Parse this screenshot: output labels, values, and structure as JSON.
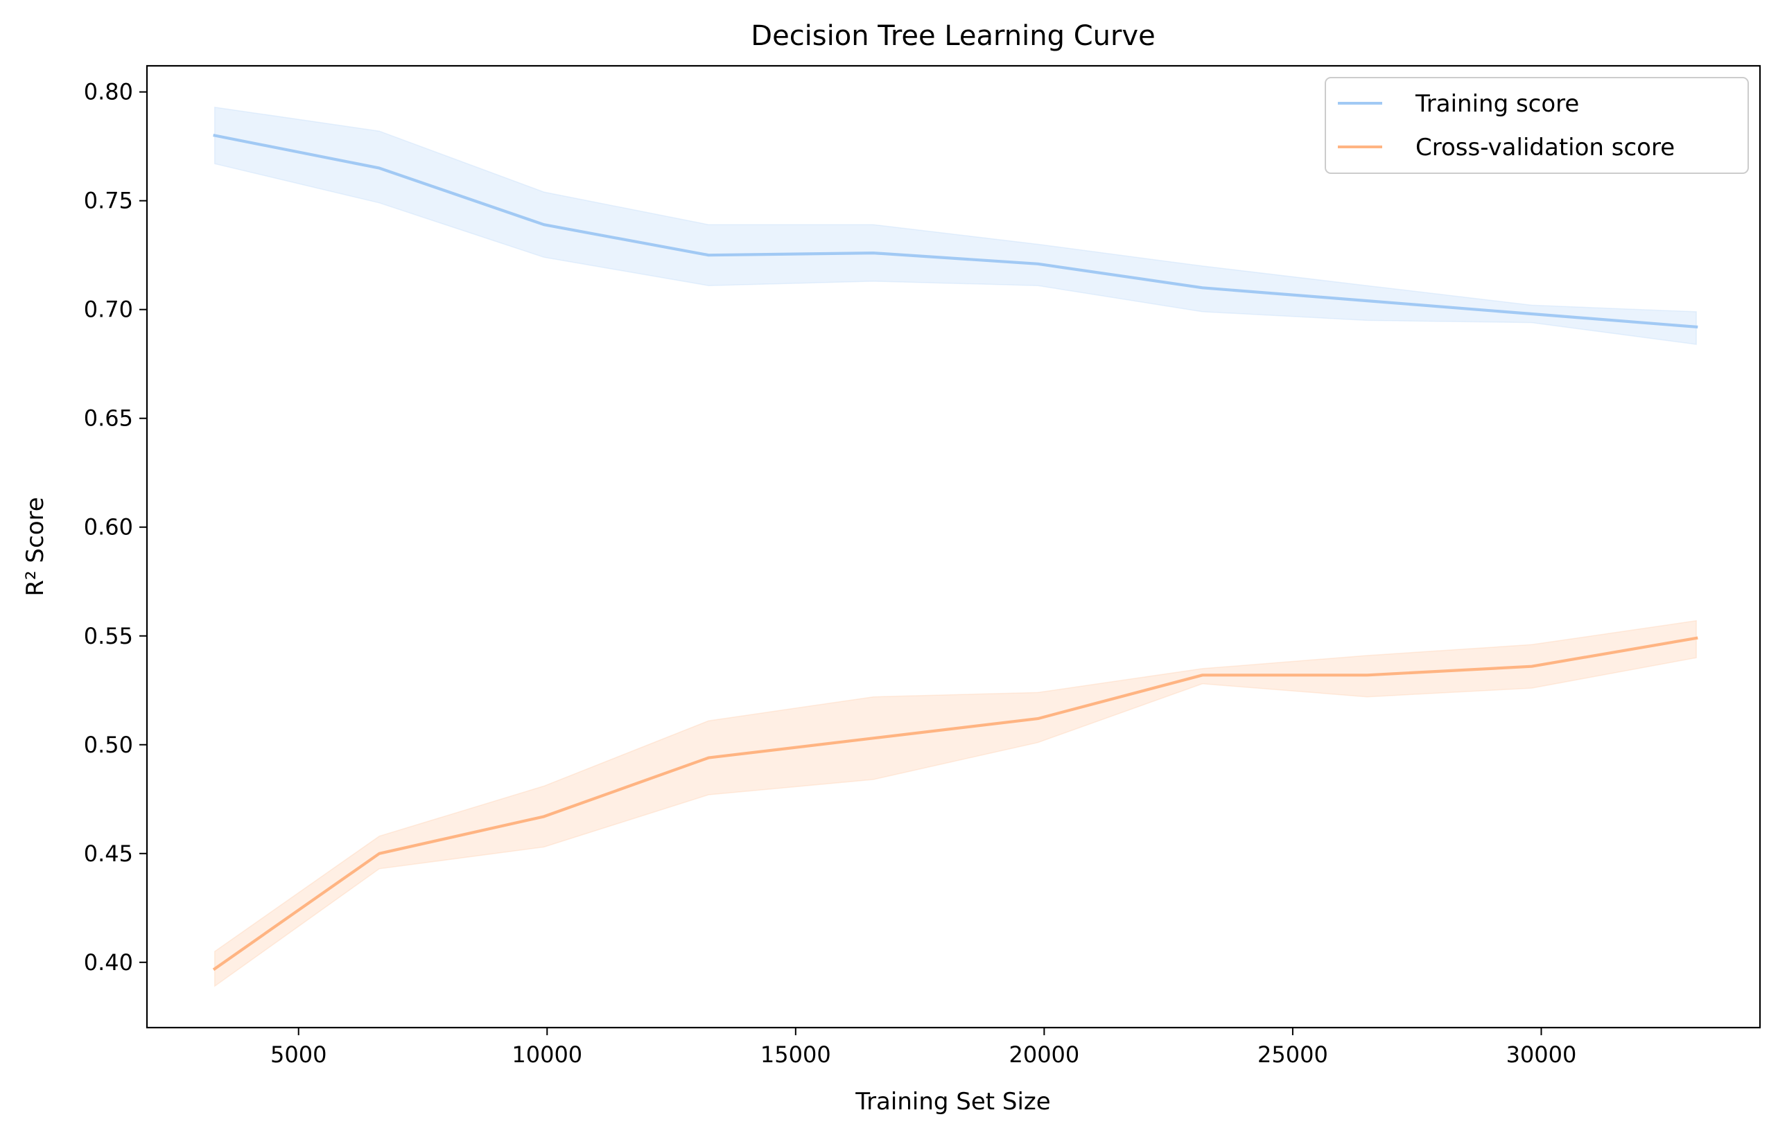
{
  "chart_data": {
    "type": "line",
    "title": "Decision Tree Learning Curve",
    "xlabel": "Training Set Size",
    "ylabel": "R² Score",
    "xlim": [
      1950,
      34400
    ],
    "ylim": [
      0.37,
      0.812
    ],
    "xticks": [
      5000,
      10000,
      15000,
      20000,
      25000,
      30000
    ],
    "yticks": [
      0.4,
      0.45,
      0.5,
      0.55,
      0.6,
      0.65,
      0.7,
      0.75,
      0.8
    ],
    "x": [
      3312,
      6624,
      9936,
      13248,
      16560,
      19872,
      23184,
      26496,
      29808,
      33120
    ],
    "grid": false,
    "legend_position": "top-right",
    "series": [
      {
        "name": "Training score",
        "color": "#a1c9f4",
        "values": [
          0.78,
          0.765,
          0.739,
          0.725,
          0.726,
          0.721,
          0.71,
          0.704,
          0.698,
          0.692
        ],
        "band_upper": [
          0.793,
          0.782,
          0.754,
          0.739,
          0.739,
          0.73,
          0.72,
          0.711,
          0.702,
          0.699
        ],
        "band_lower": [
          0.767,
          0.749,
          0.724,
          0.711,
          0.713,
          0.711,
          0.699,
          0.695,
          0.694,
          0.684
        ]
      },
      {
        "name": "Cross-validation score",
        "color": "#ffb482",
        "values": [
          0.397,
          0.45,
          0.467,
          0.494,
          0.503,
          0.512,
          0.532,
          0.532,
          0.536,
          0.549
        ],
        "band_upper": [
          0.405,
          0.458,
          0.481,
          0.511,
          0.522,
          0.524,
          0.535,
          0.541,
          0.546,
          0.557
        ],
        "band_lower": [
          0.389,
          0.443,
          0.453,
          0.477,
          0.484,
          0.501,
          0.528,
          0.522,
          0.526,
          0.54
        ]
      }
    ]
  }
}
